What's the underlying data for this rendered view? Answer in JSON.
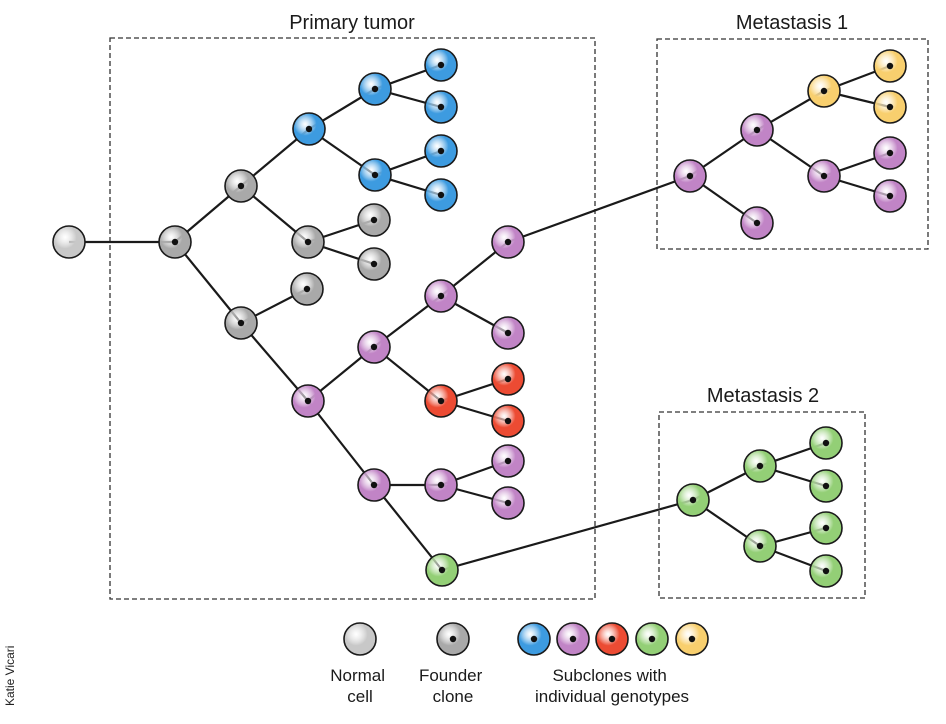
{
  "regions": {
    "primary": {
      "title": "Primary tumor"
    },
    "met1": {
      "title": "Metastasis 1"
    },
    "met2": {
      "title": "Metastasis 2"
    }
  },
  "legend": {
    "normal": [
      "Normal",
      "cell"
    ],
    "founder": [
      "Founder",
      "clone"
    ],
    "subclones": [
      "Subclones with",
      "individual genotypes"
    ]
  },
  "credit": "Katie Vicari",
  "colors": {
    "normal": "#c8c8c8",
    "founder": "#a9a9a9",
    "blue": "#3d9be0",
    "purple": "#c184c6",
    "red": "#ec4b33",
    "green": "#93cf76",
    "yellow": "#f8cf6e"
  },
  "tree": {
    "cells": [
      {
        "id": "n0",
        "type": "normal"
      },
      {
        "id": "f0",
        "type": "founder"
      },
      {
        "id": "g1",
        "type": "founder"
      },
      {
        "id": "g2",
        "type": "founder"
      },
      {
        "id": "g3",
        "type": "founder"
      },
      {
        "id": "g4",
        "type": "founder"
      },
      {
        "id": "g5",
        "type": "founder"
      },
      {
        "id": "g6",
        "type": "founder"
      },
      {
        "id": "b1",
        "type": "blue"
      },
      {
        "id": "b2",
        "type": "blue"
      },
      {
        "id": "b3",
        "type": "blue"
      },
      {
        "id": "b4",
        "type": "blue"
      },
      {
        "id": "b5",
        "type": "blue"
      },
      {
        "id": "b6",
        "type": "blue"
      },
      {
        "id": "b7",
        "type": "blue"
      },
      {
        "id": "p1",
        "type": "purple"
      },
      {
        "id": "p2",
        "type": "purple"
      },
      {
        "id": "p3",
        "type": "purple"
      },
      {
        "id": "p4",
        "type": "purple"
      },
      {
        "id": "p5",
        "type": "purple"
      },
      {
        "id": "p6",
        "type": "purple"
      },
      {
        "id": "p7",
        "type": "purple"
      },
      {
        "id": "p8",
        "type": "purple"
      },
      {
        "id": "p9",
        "type": "purple"
      },
      {
        "id": "r1",
        "type": "red"
      },
      {
        "id": "r2",
        "type": "red"
      },
      {
        "id": "r3",
        "type": "red"
      },
      {
        "id": "gr0",
        "type": "green"
      },
      {
        "id": "m1a",
        "type": "purple"
      },
      {
        "id": "m1b",
        "type": "purple"
      },
      {
        "id": "m1c",
        "type": "purple"
      },
      {
        "id": "m1d",
        "type": "purple"
      },
      {
        "id": "m1e",
        "type": "purple"
      },
      {
        "id": "m1f",
        "type": "purple"
      },
      {
        "id": "y1",
        "type": "yellow"
      },
      {
        "id": "y2",
        "type": "yellow"
      },
      {
        "id": "y3",
        "type": "yellow"
      },
      {
        "id": "m2a",
        "type": "green"
      },
      {
        "id": "m2b",
        "type": "green"
      },
      {
        "id": "m2c",
        "type": "green"
      },
      {
        "id": "m2d",
        "type": "green"
      },
      {
        "id": "m2e",
        "type": "green"
      },
      {
        "id": "m2f",
        "type": "green"
      },
      {
        "id": "m2g",
        "type": "green"
      }
    ],
    "edges": [
      [
        "n0",
        "f0"
      ],
      [
        "f0",
        "g1"
      ],
      [
        "f0",
        "g4"
      ],
      [
        "g1",
        "b1"
      ],
      [
        "g1",
        "g2"
      ],
      [
        "b1",
        "b2"
      ],
      [
        "b1",
        "b3"
      ],
      [
        "b2",
        "b4"
      ],
      [
        "b2",
        "b5"
      ],
      [
        "b3",
        "b6"
      ],
      [
        "b3",
        "b7"
      ],
      [
        "g2",
        "g3"
      ],
      [
        "g2",
        "g5"
      ],
      [
        "g4",
        "g6"
      ],
      [
        "g4",
        "p1"
      ],
      [
        "p1",
        "p2"
      ],
      [
        "p1",
        "p3"
      ],
      [
        "p2",
        "p4"
      ],
      [
        "p2",
        "r1"
      ],
      [
        "p4",
        "p5"
      ],
      [
        "p4",
        "p6"
      ],
      [
        "r1",
        "r2"
      ],
      [
        "r1",
        "r3"
      ],
      [
        "p3",
        "p7"
      ],
      [
        "p3",
        "gr0"
      ],
      [
        "p7",
        "p8"
      ],
      [
        "p7",
        "p9"
      ],
      [
        "p5",
        "m1a"
      ],
      [
        "m1a",
        "m1b"
      ],
      [
        "m1a",
        "m1c"
      ],
      [
        "m1b",
        "y1"
      ],
      [
        "m1b",
        "m1d"
      ],
      [
        "y1",
        "y2"
      ],
      [
        "y1",
        "y3"
      ],
      [
        "m1d",
        "m1e"
      ],
      [
        "m1d",
        "m1f"
      ],
      [
        "gr0",
        "m2a"
      ],
      [
        "m2a",
        "m2b"
      ],
      [
        "m2a",
        "m2c"
      ],
      [
        "m2b",
        "m2d"
      ],
      [
        "m2b",
        "m2e"
      ],
      [
        "m2c",
        "m2f"
      ],
      [
        "m2c",
        "m2g"
      ]
    ]
  }
}
